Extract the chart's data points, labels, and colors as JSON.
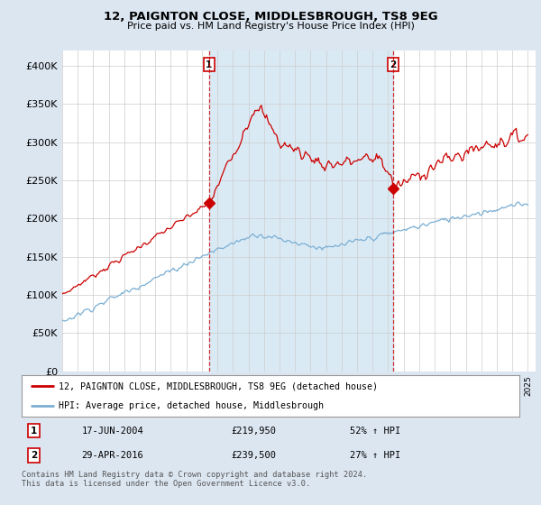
{
  "title": "12, PAIGNTON CLOSE, MIDDLESBROUGH, TS8 9EG",
  "subtitle": "Price paid vs. HM Land Registry's House Price Index (HPI)",
  "ylim": [
    0,
    420000
  ],
  "yticks": [
    0,
    50000,
    100000,
    150000,
    200000,
    250000,
    300000,
    350000,
    400000
  ],
  "ytick_labels": [
    "£0",
    "£50K",
    "£100K",
    "£150K",
    "£200K",
    "£250K",
    "£300K",
    "£350K",
    "£400K"
  ],
  "red_color": "#cc0000",
  "blue_color": "#7bafd4",
  "fill_color": "#daeaf5",
  "sale1_year": 2004.46,
  "sale1_price": 219950,
  "sale1_date_str": "17-JUN-2004",
  "sale1_hpi_pct": "52% ↑ HPI",
  "sale2_year": 2016.33,
  "sale2_price": 239500,
  "sale2_date_str": "29-APR-2016",
  "sale2_hpi_pct": "27% ↑ HPI",
  "legend_red_label": "12, PAIGNTON CLOSE, MIDDLESBROUGH, TS8 9EG (detached house)",
  "legend_blue_label": "HPI: Average price, detached house, Middlesbrough",
  "footer": "Contains HM Land Registry data © Crown copyright and database right 2024.\nThis data is licensed under the Open Government Licence v3.0.",
  "background_color": "#dce6f1",
  "plot_bg_color": "#ffffff"
}
